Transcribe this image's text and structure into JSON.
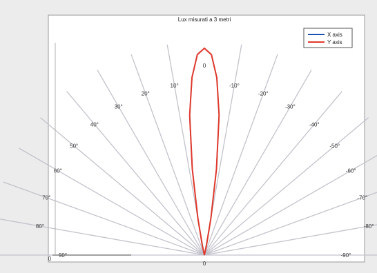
{
  "chart_data": {
    "type": "line",
    "title": "Lux misurati a  3  metri",
    "coordinate_system": "polar",
    "angle_range_deg": [
      -90,
      90
    ],
    "radial_grid_step_deg": 10,
    "angle_labels": [
      "-90°",
      "-80°",
      "-70°",
      "-60°",
      "-50°",
      "-40°",
      "-30°",
      "-20°",
      "-10°",
      "0",
      "10°",
      "20°",
      "30°",
      "40°",
      "50°",
      "60°",
      "70°",
      "80°",
      "90°"
    ],
    "axis_tick_labels": {
      "left": "0",
      "center": "0"
    },
    "legend_position": "top-right",
    "series": [
      {
        "name": "X axis",
        "color": "#1f4fb0",
        "angles_deg": [
          -12,
          -10,
          -8,
          -6,
          -4,
          -2,
          0,
          2,
          4,
          6,
          8,
          10,
          12
        ],
        "values": [
          0.05,
          0.18,
          0.42,
          0.68,
          0.86,
          0.97,
          1.0,
          0.97,
          0.86,
          0.68,
          0.42,
          0.18,
          0.05
        ]
      },
      {
        "name": "Y axis",
        "color": "#e0392b",
        "angles_deg": [
          -12,
          -10,
          -8,
          -6,
          -4,
          -2,
          0,
          2,
          4,
          6,
          8,
          10,
          12
        ],
        "values": [
          0.05,
          0.18,
          0.42,
          0.68,
          0.86,
          0.97,
          1.0,
          0.97,
          0.86,
          0.68,
          0.42,
          0.18,
          0.05
        ]
      }
    ]
  }
}
